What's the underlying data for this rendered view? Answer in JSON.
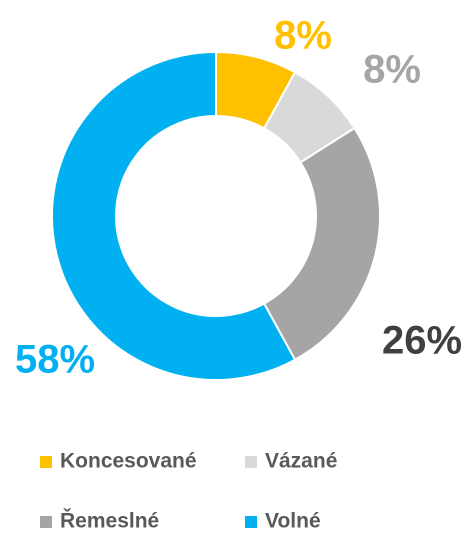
{
  "chart_data": {
    "type": "donut",
    "categories": [
      "Koncesované",
      "Vázané",
      "Řemeslné",
      "Volné"
    ],
    "values": [
      8,
      8,
      26,
      58
    ],
    "value_labels": [
      "8%",
      "8%",
      "26%",
      "58%"
    ],
    "colors": [
      "#ffc000",
      "#d9d9d9",
      "#a5a5a5",
      "#00b0f0"
    ],
    "label_colors": [
      "#ffc000",
      "#a5a5a5",
      "#404040",
      "#00b0f0"
    ],
    "legend": "bottom"
  }
}
